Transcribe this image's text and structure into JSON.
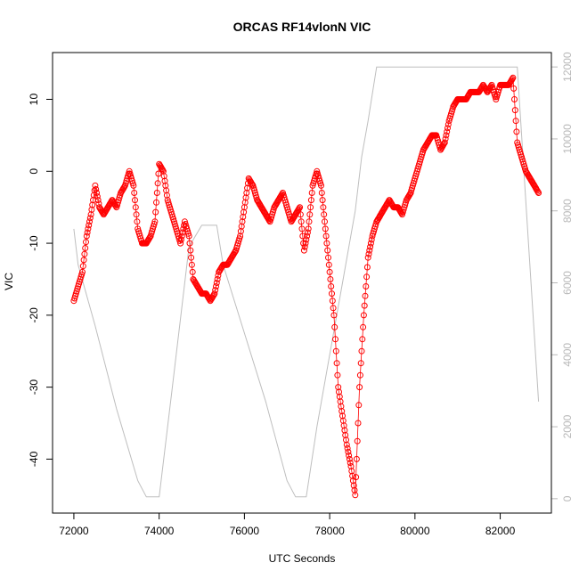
{
  "chart_data": {
    "type": "scatter",
    "title": "ORCAS RF14vlonN VIC",
    "xlabel": "UTC Seconds",
    "ylabel": "VIC",
    "xlim": [
      71500,
      83200
    ],
    "ylim": [
      -47.5,
      16.5
    ],
    "y2lim": [
      -400,
      12400
    ],
    "x_ticks": [
      72000,
      74000,
      76000,
      78000,
      80000,
      82000
    ],
    "y_ticks": [
      -40,
      -30,
      -20,
      -10,
      0,
      10
    ],
    "y2_ticks": [
      0,
      2000,
      4000,
      6000,
      8000,
      10000,
      12000
    ],
    "grid": false,
    "legend": "none",
    "colors": {
      "vic": "#ff0000",
      "altitude": "#bebebe",
      "right_axis": "#b8b8b8",
      "frame": "#000000"
    },
    "series": [
      {
        "marker": "open-circle",
        "connected": true,
        "x": [
          72000,
          72100,
          72200,
          72300,
          72400,
          72500,
          72600,
          72700,
          72800,
          72900,
          73000,
          73100,
          73200,
          73300,
          73400,
          73500,
          73600,
          73700,
          73800,
          73900,
          74000,
          74100,
          74200,
          74300,
          74400,
          74500,
          74600,
          74700,
          74800,
          74900,
          75000,
          75100,
          75200,
          75300,
          75400,
          75500,
          75600,
          75700,
          75800,
          75900,
          76000,
          76100,
          76200,
          76300,
          76400,
          76500,
          76600,
          76700,
          76800,
          76900,
          77000,
          77100,
          77200,
          77300,
          77400,
          77500,
          77600,
          77700,
          77800,
          77900,
          78000,
          78100,
          78200,
          78300,
          78400,
          78500,
          78600,
          78700,
          78800,
          78900,
          79000,
          79100,
          79200,
          79300,
          79400,
          79500,
          79600,
          79700,
          79800,
          79900,
          80000,
          80100,
          80200,
          80300,
          80400,
          80500,
          80600,
          80700,
          80800,
          80900,
          81000,
          81100,
          81200,
          81300,
          81400,
          81500,
          81600,
          81700,
          81800,
          81900,
          82000,
          82100,
          82200,
          82300,
          82400,
          82500,
          82600,
          82700,
          82800,
          82900
        ],
        "y": [
          -18,
          -16,
          -14,
          -9,
          -6,
          -2,
          -5,
          -6,
          -5,
          -4,
          -5,
          -3,
          -2,
          0,
          -2,
          -8,
          -10,
          -10,
          -9,
          -7,
          1,
          0,
          -4,
          -6,
          -8,
          -10,
          -7,
          -9,
          -15,
          -16,
          -17,
          -17,
          -18,
          -17,
          -14,
          -13,
          -13,
          -12,
          -11,
          -9,
          -5,
          -1,
          -2,
          -4,
          -5,
          -6,
          -7,
          -5,
          -4,
          -3,
          -5,
          -7,
          -6,
          -5,
          -11,
          -8,
          -2,
          0,
          -2,
          -8,
          -14,
          -20,
          -30,
          -34,
          -38,
          -41,
          -45,
          -30,
          -20,
          -12,
          -9,
          -7,
          -6,
          -5,
          -4,
          -5,
          -5,
          -6,
          -4,
          -3,
          -1,
          1,
          3,
          4,
          5,
          5,
          3,
          4,
          7,
          9,
          10,
          10,
          10,
          11,
          11,
          11,
          12,
          11,
          12,
          10,
          12,
          12,
          12,
          13,
          4,
          2,
          0,
          -1,
          -2,
          -3
        ]
      },
      {
        "axis": "right",
        "x": [
          72000,
          72100,
          72500,
          73000,
          73500,
          73700,
          73900,
          74000,
          74300,
          74700,
          75000,
          75350,
          75500,
          76000,
          76500,
          77000,
          77200,
          77450,
          77700,
          78000,
          78300,
          78600,
          78750,
          78900,
          79100,
          80000,
          81000,
          82000,
          82400,
          82900
        ],
        "y": [
          7500,
          6500,
          4800,
          2500,
          500,
          50,
          50,
          50,
          3000,
          7000,
          7600,
          7600,
          6500,
          4600,
          2700,
          500,
          50,
          50,
          2000,
          4000,
          6000,
          8000,
          9500,
          10500,
          12000,
          12000,
          12000,
          12000,
          12000,
          2700
        ]
      }
    ]
  }
}
